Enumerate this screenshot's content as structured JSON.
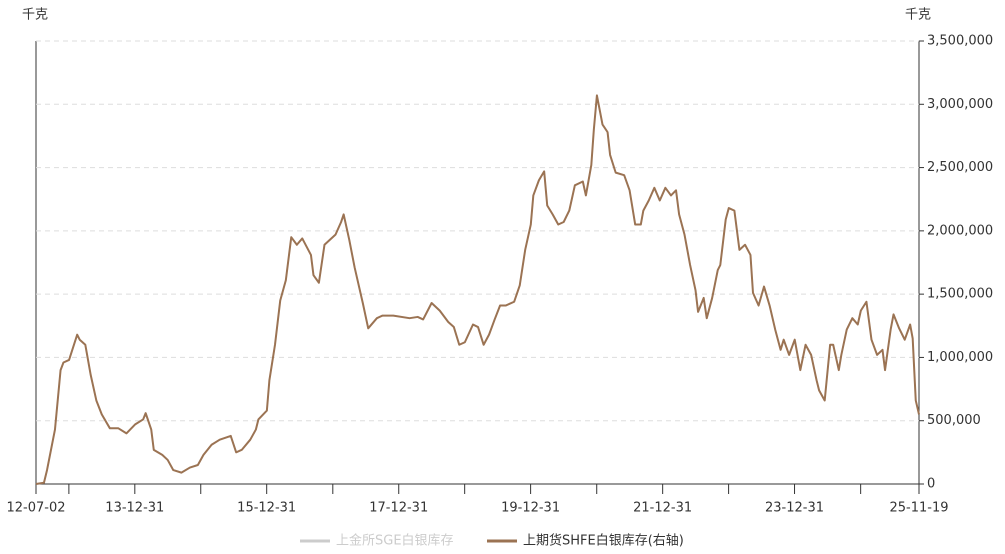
{
  "chart_data": {
    "type": "line",
    "y_unit_left": "千克",
    "y_unit_right": "千克",
    "x": [
      "12-07-02",
      "12-08-15",
      "12-09-01",
      "12-10-15",
      "12-11-15",
      "12-12-01",
      "13-01-01",
      "13-02-15",
      "13-03-01",
      "13-04-01",
      "13-05-01",
      "13-06-01",
      "13-07-01",
      "13-08-15",
      "13-10-01",
      "13-11-15",
      "14-01-01",
      "14-02-15",
      "14-03-01",
      "14-04-01",
      "14-04-15",
      "14-06-01",
      "14-07-01",
      "14-08-01",
      "14-09-15",
      "14-11-01",
      "14-12-15",
      "15-01-15",
      "15-03-01",
      "15-04-15",
      "15-06-15",
      "15-07-15",
      "15-08-15",
      "15-10-01",
      "15-11-01",
      "15-11-15",
      "16-01-01",
      "16-01-15",
      "16-02-15",
      "16-03-15",
      "16-04-15",
      "16-05-15",
      "16-06-15",
      "16-07-15",
      "16-09-01",
      "16-09-15",
      "16-10-15",
      "16-11-15",
      "16-12-15",
      "17-01-15",
      "17-02-15",
      "17-03-01",
      "17-04-01",
      "17-05-01",
      "17-06-15",
      "17-07-15",
      "17-09-01",
      "17-10-01",
      "17-12-01",
      "18-03-01",
      "18-04-15",
      "18-05-15",
      "18-07-01",
      "18-08-15",
      "18-10-01",
      "18-11-01",
      "18-12-01",
      "19-01-01",
      "19-02-15",
      "19-03-15",
      "19-04-15",
      "19-05-15",
      "19-06-15",
      "19-07-15",
      "19-08-15",
      "19-10-01",
      "19-11-01",
      "19-12-01",
      "20-01-01",
      "20-01-15",
      "20-02-15",
      "20-03-15",
      "20-04-01",
      "20-05-01",
      "20-06-01",
      "20-07-01",
      "20-08-01",
      "20-09-01",
      "20-10-15",
      "20-11-01",
      "20-12-01",
      "20-12-15",
      "21-01-01",
      "21-02-01",
      "21-03-01",
      "21-03-15",
      "21-04-15",
      "21-06-01",
      "21-07-01",
      "21-08-01",
      "21-09-01",
      "21-09-15",
      "21-10-15",
      "21-11-15",
      "21-12-15",
      "22-01-15",
      "22-02-15",
      "22-03-15",
      "22-04-01",
      "22-05-01",
      "22-06-01",
      "22-07-01",
      "22-07-15",
      "22-08-15",
      "22-09-01",
      "22-10-01",
      "22-11-01",
      "22-11-15",
      "22-12-15",
      "23-01-01",
      "23-02-01",
      "23-03-01",
      "23-04-01",
      "23-05-01",
      "23-05-15",
      "23-06-15",
      "23-07-15",
      "23-08-15",
      "23-09-15",
      "23-10-15",
      "23-11-01",
      "23-12-01",
      "24-01-01",
      "24-02-01",
      "24-03-01",
      "24-04-01",
      "24-05-01",
      "24-05-15",
      "24-06-15",
      "24-07-15",
      "24-08-01",
      "24-09-01",
      "24-09-15",
      "24-10-15",
      "24-11-15",
      "24-12-15",
      "25-01-01",
      "25-02-01",
      "25-03-01",
      "25-04-01",
      "25-05-01",
      "25-05-15",
      "25-06-15",
      "25-07-01",
      "25-08-01",
      "25-09-01",
      "25-10-01",
      "25-10-15",
      "25-11-01",
      "25-11-19"
    ],
    "series": [
      {
        "name": "上金所SGE白银库存",
        "color": "#cccccc",
        "hidden": true
      },
      {
        "name": "上期货SHFE白银库存(右轴)",
        "color": "#9b7353",
        "axis": "y2",
        "values": [
          0,
          10000,
          110000,
          430000,
          900000,
          960000,
          980000,
          1180000,
          1140000,
          1100000,
          860000,
          660000,
          550000,
          440000,
          440000,
          400000,
          470000,
          510000,
          560000,
          430000,
          270000,
          230000,
          190000,
          110000,
          90000,
          130000,
          150000,
          230000,
          310000,
          350000,
          380000,
          250000,
          270000,
          350000,
          430000,
          510000,
          580000,
          820000,
          1100000,
          1450000,
          1610000,
          1950000,
          1890000,
          1940000,
          1810000,
          1650000,
          1590000,
          1890000,
          1930000,
          1970000,
          2070000,
          2130000,
          1930000,
          1710000,
          1430000,
          1230000,
          1310000,
          1330000,
          1330000,
          1310000,
          1320000,
          1300000,
          1430000,
          1370000,
          1280000,
          1240000,
          1100000,
          1120000,
          1260000,
          1240000,
          1100000,
          1180000,
          1300000,
          1410000,
          1410000,
          1440000,
          1570000,
          1850000,
          2050000,
          2280000,
          2400000,
          2470000,
          2200000,
          2130000,
          2050000,
          2070000,
          2160000,
          2360000,
          2390000,
          2280000,
          2520000,
          2800000,
          3070000,
          2840000,
          2780000,
          2600000,
          2460000,
          2440000,
          2320000,
          2050000,
          2050000,
          2160000,
          2240000,
          2340000,
          2240000,
          2340000,
          2280000,
          2320000,
          2130000,
          1970000,
          1730000,
          1530000,
          1360000,
          1470000,
          1310000,
          1470000,
          1690000,
          1730000,
          2090000,
          2180000,
          2160000,
          1850000,
          1890000,
          1810000,
          1510000,
          1410000,
          1560000,
          1410000,
          1220000,
          1060000,
          1140000,
          1020000,
          1140000,
          900000,
          1100000,
          1020000,
          820000,
          740000,
          660000,
          1100000,
          1100000,
          900000,
          1020000,
          1220000,
          1310000,
          1260000,
          1370000,
          1440000,
          1140000,
          1020000,
          1060000,
          900000,
          1220000,
          1340000,
          1230000,
          1140000,
          1260000,
          1150000,
          660000,
          550000
        ]
      }
    ],
    "xlim": [
      "12-07-02",
      "25-11-19"
    ],
    "xticks": [
      "12-07-02",
      {
        "value": "12-12-31",
        "label": null
      },
      "13-12-31",
      {
        "value": "14-12-31",
        "label": null
      },
      "15-12-31",
      {
        "value": "16-12-31",
        "label": null
      },
      "17-12-31",
      {
        "value": "18-12-31",
        "label": null
      },
      "19-12-31",
      {
        "value": "20-12-31",
        "label": null
      },
      "21-12-31",
      {
        "value": "22-12-31",
        "label": null
      },
      "23-12-31",
      {
        "value": "24-12-31",
        "label": null
      },
      "25-11-19"
    ],
    "y2lim": [
      0,
      3500000
    ],
    "y2ticks": [
      0,
      {
        "value": 500000,
        "label": "500,000"
      },
      {
        "value": 1000000,
        "label": "1,000,000"
      },
      {
        "value": 1500000,
        "label": "1,500,000"
      },
      {
        "value": 2000000,
        "label": "2,000,000"
      },
      {
        "value": 2500000,
        "label": "2,500,000"
      },
      {
        "value": 3000000,
        "label": "3,000,000"
      },
      {
        "value": 3500000,
        "label": "3,500,000"
      }
    ],
    "grid": true
  }
}
